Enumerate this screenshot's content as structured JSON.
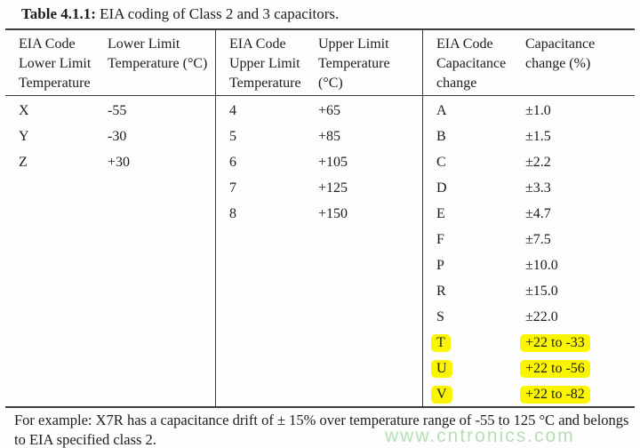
{
  "title": {
    "bold": "Table 4.1.1:",
    "rest": " EIA coding of Class 2 and 3 capacitors."
  },
  "table": {
    "sections": [
      {
        "name": "lower-limit-temperature",
        "col1_header": "EIA Code Lower Limit Temperature",
        "col2_header": "Lower Limit Temperature (°C)",
        "rows": [
          {
            "code": "X",
            "value": "-55"
          },
          {
            "code": "Y",
            "value": "-30"
          },
          {
            "code": "Z",
            "value": "+30"
          }
        ]
      },
      {
        "name": "upper-limit-temperature",
        "col1_header": "EIA Code Upper Limit Temperature",
        "col2_header": "Upper Limit Temperature (°C)",
        "rows": [
          {
            "code": "4",
            "value": "+65"
          },
          {
            "code": "5",
            "value": "+85"
          },
          {
            "code": "6",
            "value": "+105"
          },
          {
            "code": "7",
            "value": "+125"
          },
          {
            "code": "8",
            "value": "+150"
          }
        ]
      },
      {
        "name": "capacitance-change",
        "col1_header": "EIA Code Capacitance change",
        "col2_header": "Capacitance change (%)",
        "rows": [
          {
            "code": "A",
            "value": "±1.0"
          },
          {
            "code": "B",
            "value": "±1.5"
          },
          {
            "code": "C",
            "value": "±2.2"
          },
          {
            "code": "D",
            "value": "±3.3"
          },
          {
            "code": "E",
            "value": "±4.7"
          },
          {
            "code": "F",
            "value": "±7.5"
          },
          {
            "code": "P",
            "value": "±10.0"
          },
          {
            "code": "R",
            "value": "±15.0"
          },
          {
            "code": "S",
            "value": "±22.0"
          },
          {
            "code": "T",
            "value": "+22 to -33",
            "highlight": true
          },
          {
            "code": "U",
            "value": "+22 to -56",
            "highlight": true
          },
          {
            "code": "V",
            "value": "+22 to -82",
            "highlight": true
          }
        ]
      }
    ]
  },
  "footer": "For example: X7R has a capacitance drift of ± 15% over temperature range of -55 to 125 °C and belongs to EIA specified class 2.",
  "watermark": "www.cntronics.com",
  "colors": {
    "highlight": "#fbf500",
    "watermark": "#b5dfb5",
    "rule": "#3d3d3d",
    "text": "#1c1c1c",
    "background": "#fdfdfd"
  }
}
